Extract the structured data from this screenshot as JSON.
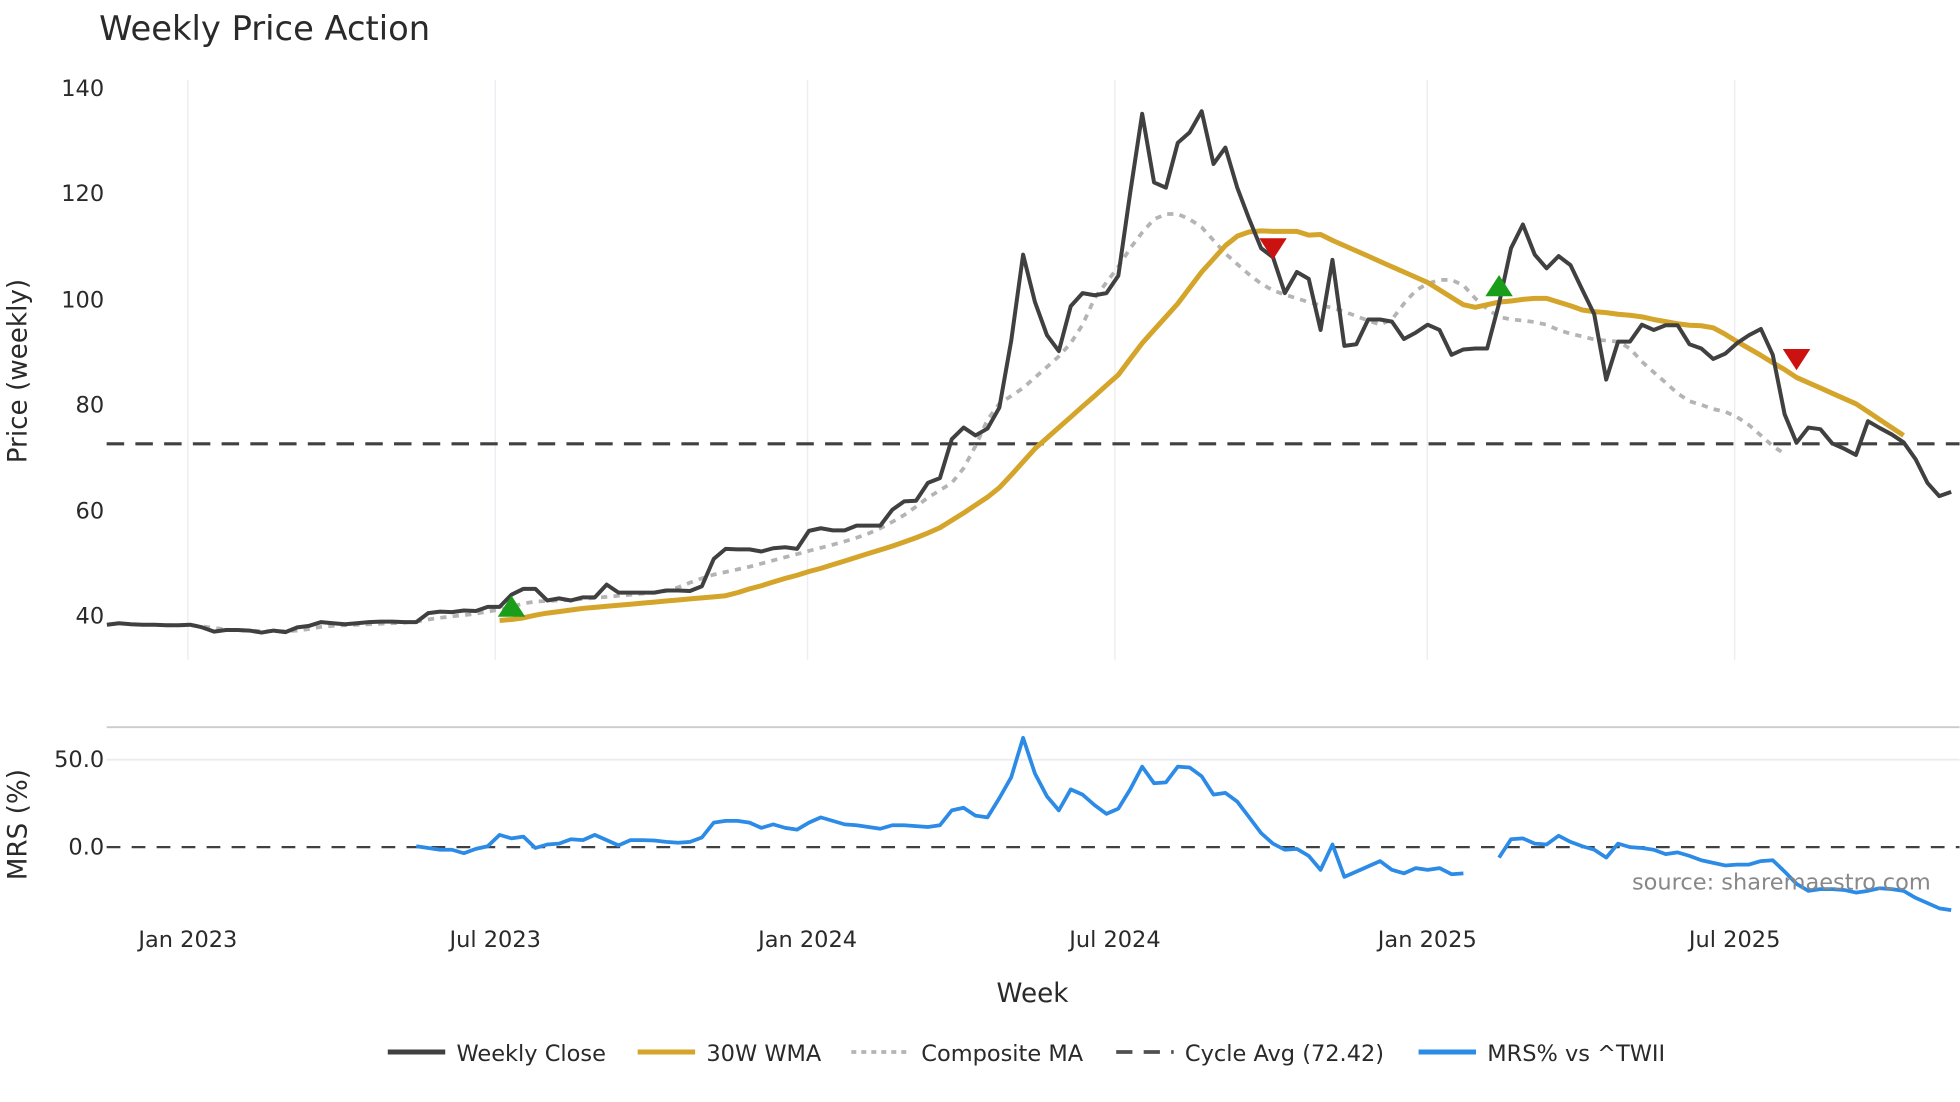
{
  "chart_data": [
    {
      "type": "line",
      "panel": "price",
      "title": "Weekly Price Action",
      "xlabel": "Week",
      "ylabel": "Price (weekly)",
      "ylim": [
        32,
        142
      ],
      "yticks": [
        40,
        60,
        80,
        100,
        120,
        140
      ],
      "xticks": [
        "Jan 2023",
        "Jul 2023",
        "Jan 2024",
        "Jul 2024",
        "Jan 2025",
        "Jul 2025"
      ],
      "grid": "vertical gridlines at x ticks",
      "start_week_offset": -6.8,
      "weeks_per_half_year": 26,
      "series": [
        {
          "name": "Weekly Close",
          "color": "#404040",
          "style": "solid",
          "values": [
            38.1,
            38.4,
            38.2,
            38.1,
            38.1,
            38.0,
            38.0,
            38.1,
            37.6,
            36.8,
            37.1,
            37.1,
            37.0,
            36.6,
            37.0,
            36.7,
            37.6,
            37.9,
            38.6,
            38.4,
            38.2,
            38.4,
            38.6,
            38.7,
            38.7,
            38.6,
            38.6,
            40.3,
            40.6,
            40.5,
            40.8,
            40.7,
            41.5,
            41.5,
            43.8,
            44.9,
            44.9,
            42.7,
            43.1,
            42.7,
            43.3,
            43.3,
            45.7,
            44.2,
            44.2,
            44.2,
            44.2,
            44.6,
            44.6,
            44.5,
            45.4,
            50.6,
            52.5,
            52.4,
            52.4,
            52.0,
            52.6,
            52.8,
            52.5,
            55.9,
            56.4,
            56.0,
            56.0,
            56.9,
            56.9,
            56.9,
            59.9,
            61.5,
            61.6,
            65.0,
            65.9,
            73.3,
            75.5,
            74.0,
            75.3,
            79.3,
            92.0,
            108.3,
            99.3,
            93.0,
            90.0,
            98.5,
            101.0,
            100.6,
            101.0,
            104.3,
            120.0,
            135.0,
            122.0,
            121.0,
            129.5,
            131.5,
            135.5,
            125.5,
            128.6,
            121.0,
            115.0,
            109.5,
            107.8,
            101.0,
            105.0,
            103.7,
            94.0,
            107.3,
            91.0,
            91.3,
            96.0,
            96.0,
            95.6,
            92.3,
            93.5,
            95.0,
            94.0,
            89.3,
            90.3,
            90.5,
            90.5,
            99.0,
            109.5,
            114.0,
            108.3,
            105.7,
            108.0,
            106.3,
            101.6,
            97.0,
            84.6,
            91.8,
            91.8,
            95.0,
            94.0,
            94.9,
            94.9,
            91.3,
            90.5,
            88.5,
            89.5,
            91.5,
            93.0,
            94.2,
            89.3,
            78.0,
            72.6,
            75.5,
            75.2,
            72.5,
            71.5,
            70.3,
            76.7,
            75.4,
            74.2,
            72.7,
            69.5,
            65.0,
            62.5,
            63.3,
            61.5,
            62.5
          ]
        },
        {
          "name": "30W WMA",
          "color": "#d4a52a",
          "style": "solid-thick",
          "start_index": 33,
          "values": [
            38.9,
            39.1,
            39.4,
            39.9,
            40.3,
            40.6,
            40.9,
            41.2,
            41.4,
            41.6,
            41.8,
            42.0,
            42.2,
            42.4,
            42.6,
            42.8,
            43.0,
            43.2,
            43.4,
            43.6,
            44.2,
            44.9,
            45.5,
            46.2,
            46.9,
            47.5,
            48.2,
            48.8,
            49.5,
            50.2,
            50.9,
            51.6,
            52.3,
            53.0,
            53.8,
            54.6,
            55.5,
            56.5,
            57.9,
            59.3,
            60.8,
            62.3,
            64.1,
            66.5,
            69.0,
            71.5,
            73.5,
            75.5,
            77.5,
            79.5,
            81.5,
            83.5,
            85.5,
            88.5,
            91.5,
            94.0,
            96.5,
            99.0,
            102.0,
            105.0,
            107.5,
            110.0,
            111.8,
            112.6,
            112.8,
            112.7,
            112.7,
            112.7,
            112.0,
            112.1,
            111.0,
            110.0,
            109.0,
            108.0,
            107.0,
            106.0,
            105.0,
            104.0,
            103.0,
            101.6,
            100.2,
            98.8,
            98.3,
            98.8,
            99.3,
            99.5,
            99.8,
            100.0,
            100.0,
            99.3,
            98.6,
            97.8,
            97.5,
            97.3,
            97.0,
            96.8,
            96.5,
            96.0,
            95.6,
            95.2,
            94.9,
            94.8,
            94.4,
            93.2,
            91.8,
            90.5,
            89.2,
            87.8,
            86.5,
            85.0,
            84.0,
            83.0,
            82.0,
            81.0,
            80.0,
            78.5,
            77.0,
            75.5,
            74.0
          ]
        },
        {
          "name": "Composite MA",
          "color": "#b4b4b4",
          "style": "dotted",
          "start_index": 5,
          "values": [
            38.0,
            38.0,
            38.0,
            37.8,
            37.5,
            37.2,
            37.0,
            37.0,
            36.9,
            36.9,
            36.9,
            37.0,
            37.3,
            37.7,
            37.9,
            38.0,
            38.1,
            38.2,
            38.3,
            38.4,
            38.5,
            38.7,
            39.1,
            39.4,
            39.7,
            39.9,
            40.2,
            40.6,
            41.0,
            41.5,
            42.1,
            42.5,
            42.6,
            42.7,
            42.8,
            43.0,
            43.2,
            43.4,
            43.6,
            43.8,
            44.0,
            44.2,
            44.5,
            45.2,
            46.1,
            46.9,
            47.6,
            48.1,
            48.6,
            49.1,
            49.7,
            50.3,
            50.9,
            51.5,
            52.1,
            52.7,
            53.3,
            53.9,
            54.6,
            55.4,
            56.4,
            57.6,
            58.9,
            60.5,
            62.2,
            63.6,
            65.0,
            67.8,
            72.0,
            77.0,
            80.0,
            81.5,
            83.0,
            85.0,
            87.0,
            89.0,
            91.5,
            95.0,
            100.0,
            103.0,
            106.0,
            109.5,
            112.5,
            115.0,
            116.0,
            116.0,
            115.0,
            113.5,
            111.0,
            108.5,
            106.5,
            104.5,
            102.8,
            101.5,
            100.7,
            100.0,
            99.3,
            98.7,
            98.2,
            97.5,
            96.6,
            95.8,
            95.0,
            96.0,
            99.0,
            101.5,
            102.8,
            103.5,
            103.5,
            102.5,
            100.0,
            98.0,
            96.5,
            96.0,
            95.8,
            95.5,
            95.0,
            94.0,
            93.3,
            92.8,
            92.2,
            92.0,
            91.8,
            90.5,
            88.0,
            86.0,
            84.0,
            82.0,
            80.5,
            79.8,
            79.0,
            78.5,
            77.5,
            76.0,
            74.0,
            72.0,
            70.5
          ]
        },
        {
          "name": "Cycle Avg (72.42)",
          "color": "#404040",
          "style": "dashed",
          "value": 72.42
        }
      ],
      "signals": [
        {
          "type": "buy",
          "color": "#1a9e1a",
          "index": 34,
          "value": 41.5
        },
        {
          "type": "sell",
          "color": "#cc1111",
          "index": 98,
          "value": 109.5
        },
        {
          "type": "buy",
          "color": "#1a9e1a",
          "index": 117,
          "value": 102.3
        },
        {
          "type": "sell",
          "color": "#cc1111",
          "index": 142,
          "value": 88.5
        }
      ]
    },
    {
      "type": "line",
      "panel": "mrs",
      "ylabel": "MRS (%)",
      "yticks": [
        0.0,
        50.0
      ],
      "ylim": [
        -42,
        68
      ],
      "series": [
        {
          "name": "MRS% vs ^TWII",
          "color": "#2b8be6",
          "start_index": 26,
          "values": [
            0.5,
            -0.5,
            -1.5,
            -1.5,
            -3.5,
            -1.0,
            0.5,
            7.0,
            5.0,
            6.0,
            -0.5,
            1.5,
            2.0,
            4.5,
            4.0,
            7.0,
            4.0,
            1.0,
            4.0,
            4.0,
            3.8,
            3.0,
            2.5,
            3.0,
            5.5,
            14.0,
            15.0,
            15.0,
            14.0,
            11.0,
            13.0,
            11.0,
            10.0,
            14.0,
            17.0,
            15.0,
            13.0,
            12.5,
            11.5,
            10.5,
            12.5,
            12.5,
            12.0,
            11.5,
            12.5,
            21.0,
            22.5,
            18.0,
            17.0,
            28.0,
            40.0,
            62.5,
            42.0,
            29.0,
            21.0,
            33.0,
            30.0,
            24.0,
            19.0,
            22.0,
            33.0,
            46.0,
            36.5,
            37.0,
            46.0,
            45.5,
            40.5,
            30.0,
            31.0,
            26.0,
            17.0,
            8.0,
            2.0,
            -1.5,
            -1.0,
            -5.0,
            -13.0,
            1.5,
            -17.0,
            -14.0,
            -11.0,
            -8.0,
            -13.0,
            -15.0,
            -12.0,
            -13.0,
            -12.0,
            -15.5,
            -15.0,
            null,
            null,
            -6.0,
            4.5,
            5.0,
            2.0,
            1.5,
            6.5,
            3.0,
            0.5,
            -1.5,
            -6.0,
            2.0,
            0.0,
            -0.5,
            -1.5,
            -4.0,
            -3.0,
            -5.0,
            -7.5,
            -9.0,
            -10.5,
            -10.0,
            -10.0,
            -8.0,
            -7.5,
            -14.0,
            -21.0,
            -25.0,
            -24.0,
            -24.0,
            -24.5,
            -26.0,
            -25.0,
            -23.5,
            -24.0,
            -25.0,
            -29.0,
            -32.0,
            -35.0,
            -36.0,
            -34.5,
            -32.5
          ]
        },
        {
          "name": "zero-line",
          "color": "#404040",
          "style": "dashed",
          "value": 0
        }
      ]
    }
  ],
  "title": "Weekly Price Action",
  "axes": {
    "price_ylabel": "Price (weekly)",
    "mrs_ylabel": "MRS (%)",
    "xlabel": "Week",
    "price_ticks": [
      "40",
      "60",
      "80",
      "100",
      "120",
      "140"
    ],
    "mrs_ticks": [
      "0.0",
      "50.0"
    ],
    "x_ticks": [
      "Jan 2023",
      "Jul 2023",
      "Jan 2024",
      "Jul 2024",
      "Jan 2025",
      "Jul 2025"
    ]
  },
  "source_label": "source: sharemaestro.com",
  "legend": [
    {
      "label": "Weekly Close",
      "color": "#404040",
      "style": "solid"
    },
    {
      "label": "30W WMA",
      "color": "#d4a52a",
      "style": "solid"
    },
    {
      "label": "Composite MA",
      "color": "#b4b4b4",
      "style": "dotted"
    },
    {
      "label": "Cycle Avg (72.42)",
      "color": "#505050",
      "style": "dashed"
    },
    {
      "label": "MRS% vs ^TWII",
      "color": "#2b8be6",
      "style": "solid"
    }
  ]
}
